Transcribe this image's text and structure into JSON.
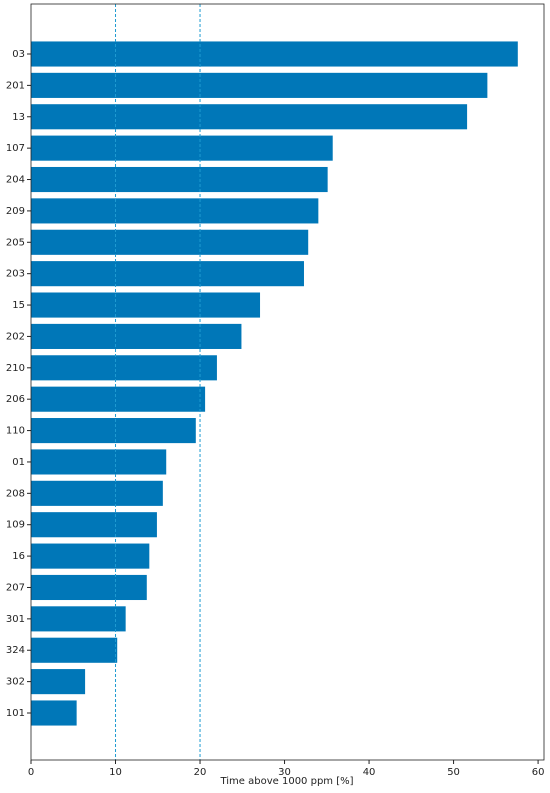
{
  "chart_data": {
    "type": "barh",
    "xlabel": "Time above 1000 ppm [%]",
    "categories": [
      "03",
      "201",
      "13",
      "107",
      "204",
      "209",
      "205",
      "203",
      "15",
      "202",
      "210",
      "206",
      "110",
      "01",
      "208",
      "109",
      "16",
      "207",
      "301",
      "324",
      "302",
      "101"
    ],
    "values": [
      57.6,
      54.0,
      51.6,
      35.7,
      35.1,
      34.0,
      32.8,
      32.3,
      27.1,
      24.9,
      22.0,
      20.6,
      19.5,
      16.0,
      15.6,
      14.9,
      14.0,
      13.7,
      11.2,
      10.2,
      6.4,
      5.4
    ],
    "color": "#0077b8",
    "xlim": [
      0,
      60.7
    ],
    "xticks": [
      0,
      10,
      20,
      30,
      40,
      50,
      60
    ],
    "reference_lines": [
      10,
      20
    ],
    "reference_color": "#1f9bd1"
  }
}
